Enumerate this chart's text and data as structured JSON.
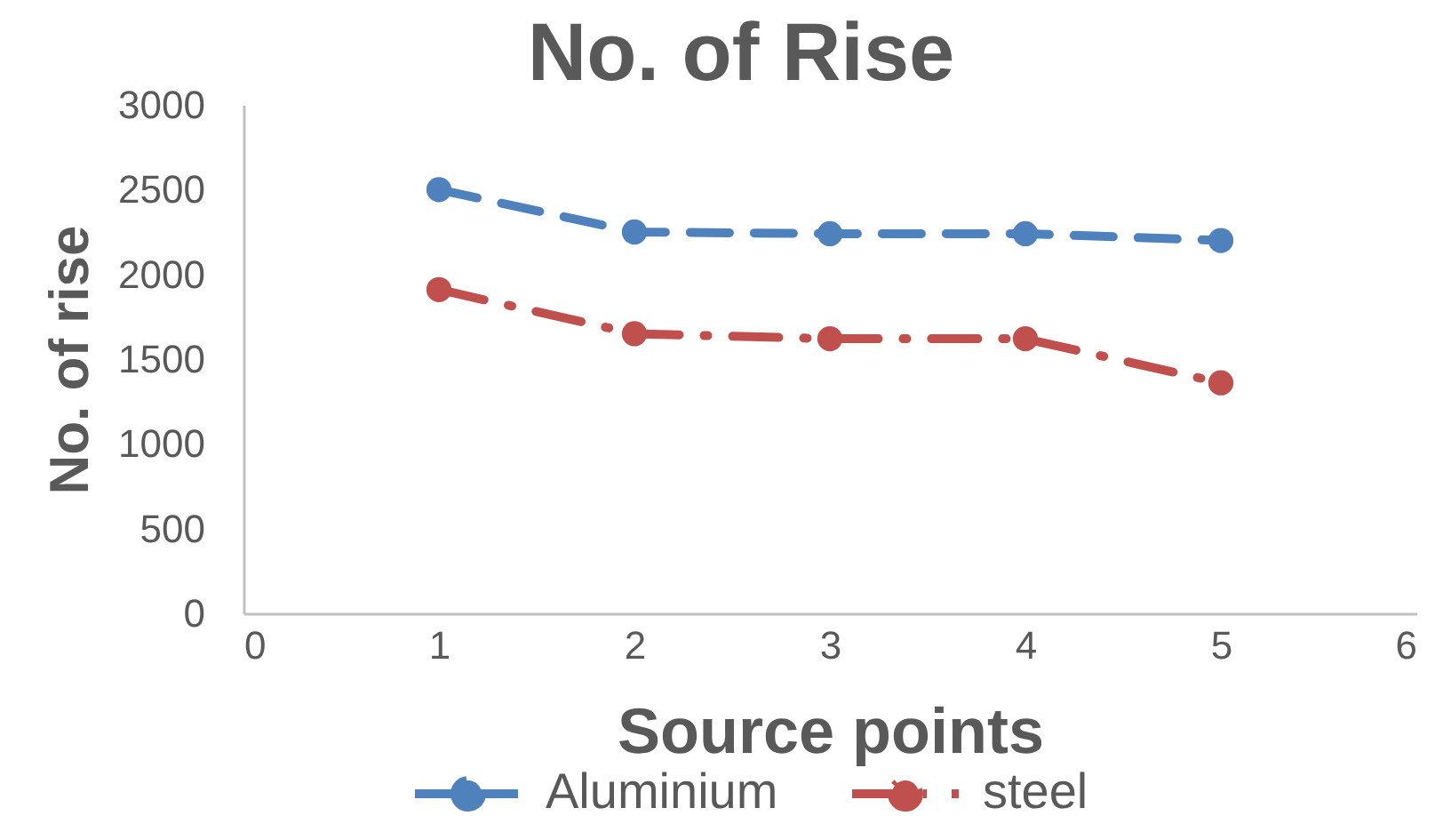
{
  "chart_data": {
    "type": "line",
    "title": "No. of Rise",
    "xlabel": "Source points",
    "ylabel": "No. of rise",
    "x": [
      1,
      2,
      3,
      4,
      5
    ],
    "xlim": [
      0,
      6
    ],
    "xticks": [
      0,
      1,
      2,
      3,
      4,
      5,
      6
    ],
    "ylim": [
      0,
      3000
    ],
    "yticks": [
      0,
      500,
      1000,
      1500,
      2000,
      2500,
      3000
    ],
    "legend": "bottom",
    "marker": "circle",
    "series": [
      {
        "name": "Aluminium",
        "color": "#4f81bd",
        "values": [
          2500,
          2250,
          2240,
          2240,
          2200
        ],
        "line_style": "dashed"
      },
      {
        "name": "steel",
        "color": "#c0504d",
        "values": [
          1910,
          1650,
          1620,
          1620,
          1360
        ],
        "line_style": "dashdot"
      }
    ]
  }
}
